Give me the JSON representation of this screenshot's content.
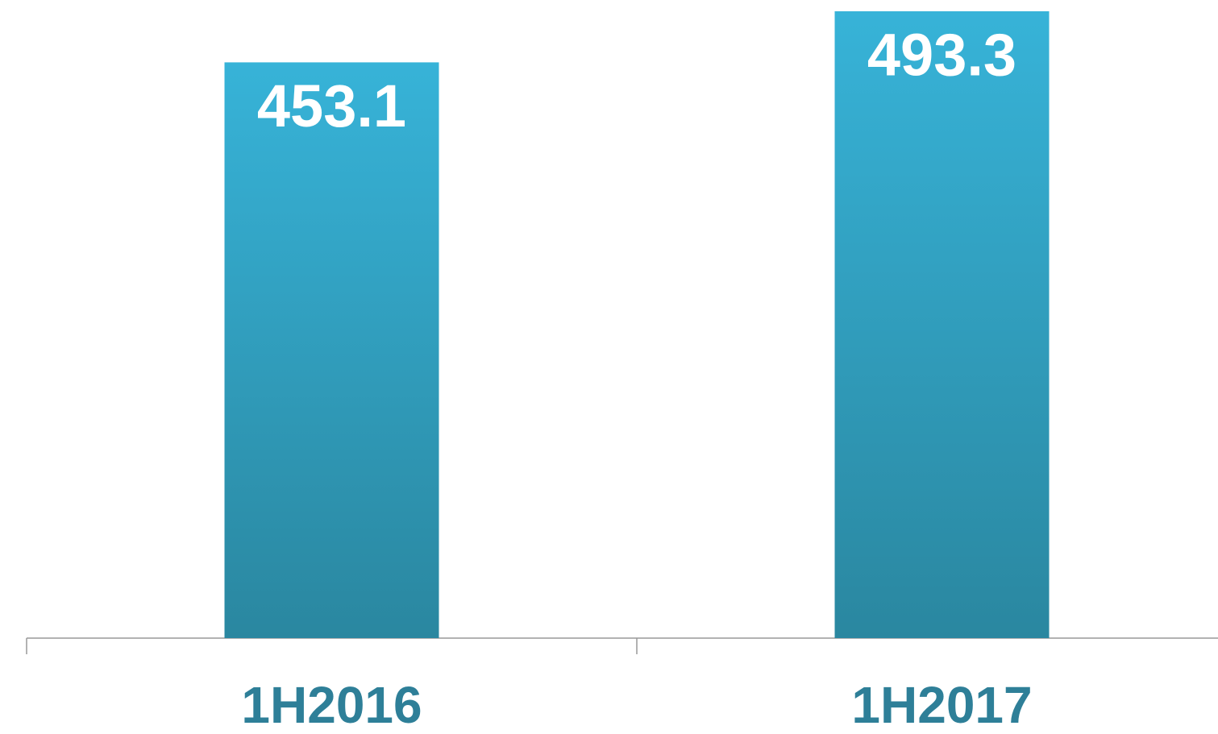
{
  "chart_data": {
    "type": "bar",
    "categories": [
      "1H2016",
      "1H2017"
    ],
    "values": [
      453.1,
      493.3
    ],
    "color": "#37b3d8"
  }
}
